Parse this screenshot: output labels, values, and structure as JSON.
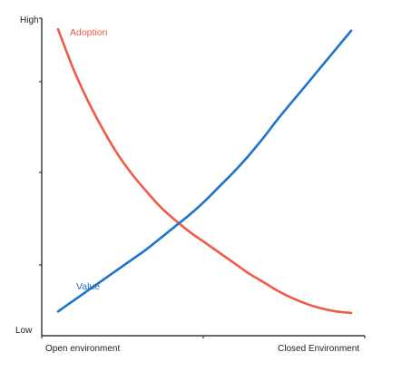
{
  "chart_data": {
    "type": "line",
    "title": "",
    "xlabel": "",
    "ylabel": "",
    "x_categories": [
      "Open environment",
      "Closed Environment"
    ],
    "y_categories": [
      "Low",
      "High"
    ],
    "xlim": [
      0,
      1
    ],
    "ylim": [
      0,
      1
    ],
    "grid": false,
    "legend": "inline",
    "series": [
      {
        "name": "Adoption",
        "color": "#f05a47",
        "points": [
          [
            0.0,
            0.99
          ],
          [
            0.05,
            0.86
          ],
          [
            0.1,
            0.75
          ],
          [
            0.15,
            0.655
          ],
          [
            0.2,
            0.57
          ],
          [
            0.25,
            0.5
          ],
          [
            0.3,
            0.44
          ],
          [
            0.35,
            0.385
          ],
          [
            0.4,
            0.34
          ],
          [
            0.45,
            0.3
          ],
          [
            0.5,
            0.265
          ],
          [
            0.55,
            0.23
          ],
          [
            0.6,
            0.195
          ],
          [
            0.65,
            0.16
          ],
          [
            0.7,
            0.13
          ],
          [
            0.75,
            0.1
          ],
          [
            0.8,
            0.075
          ],
          [
            0.85,
            0.055
          ],
          [
            0.9,
            0.04
          ],
          [
            0.95,
            0.03
          ],
          [
            1.0,
            0.025
          ]
        ]
      },
      {
        "name": "Value",
        "color": "#1f73c8",
        "points": [
          [
            0.0,
            0.03
          ],
          [
            0.05,
            0.065
          ],
          [
            0.1,
            0.1
          ],
          [
            0.15,
            0.135
          ],
          [
            0.2,
            0.17
          ],
          [
            0.25,
            0.205
          ],
          [
            0.3,
            0.24
          ],
          [
            0.35,
            0.28
          ],
          [
            0.4,
            0.32
          ],
          [
            0.45,
            0.36
          ],
          [
            0.5,
            0.405
          ],
          [
            0.55,
            0.455
          ],
          [
            0.6,
            0.505
          ],
          [
            0.65,
            0.56
          ],
          [
            0.7,
            0.62
          ],
          [
            0.75,
            0.685
          ],
          [
            0.8,
            0.745
          ],
          [
            0.85,
            0.805
          ],
          [
            0.9,
            0.865
          ],
          [
            0.95,
            0.925
          ],
          [
            1.0,
            0.985
          ]
        ]
      }
    ]
  }
}
